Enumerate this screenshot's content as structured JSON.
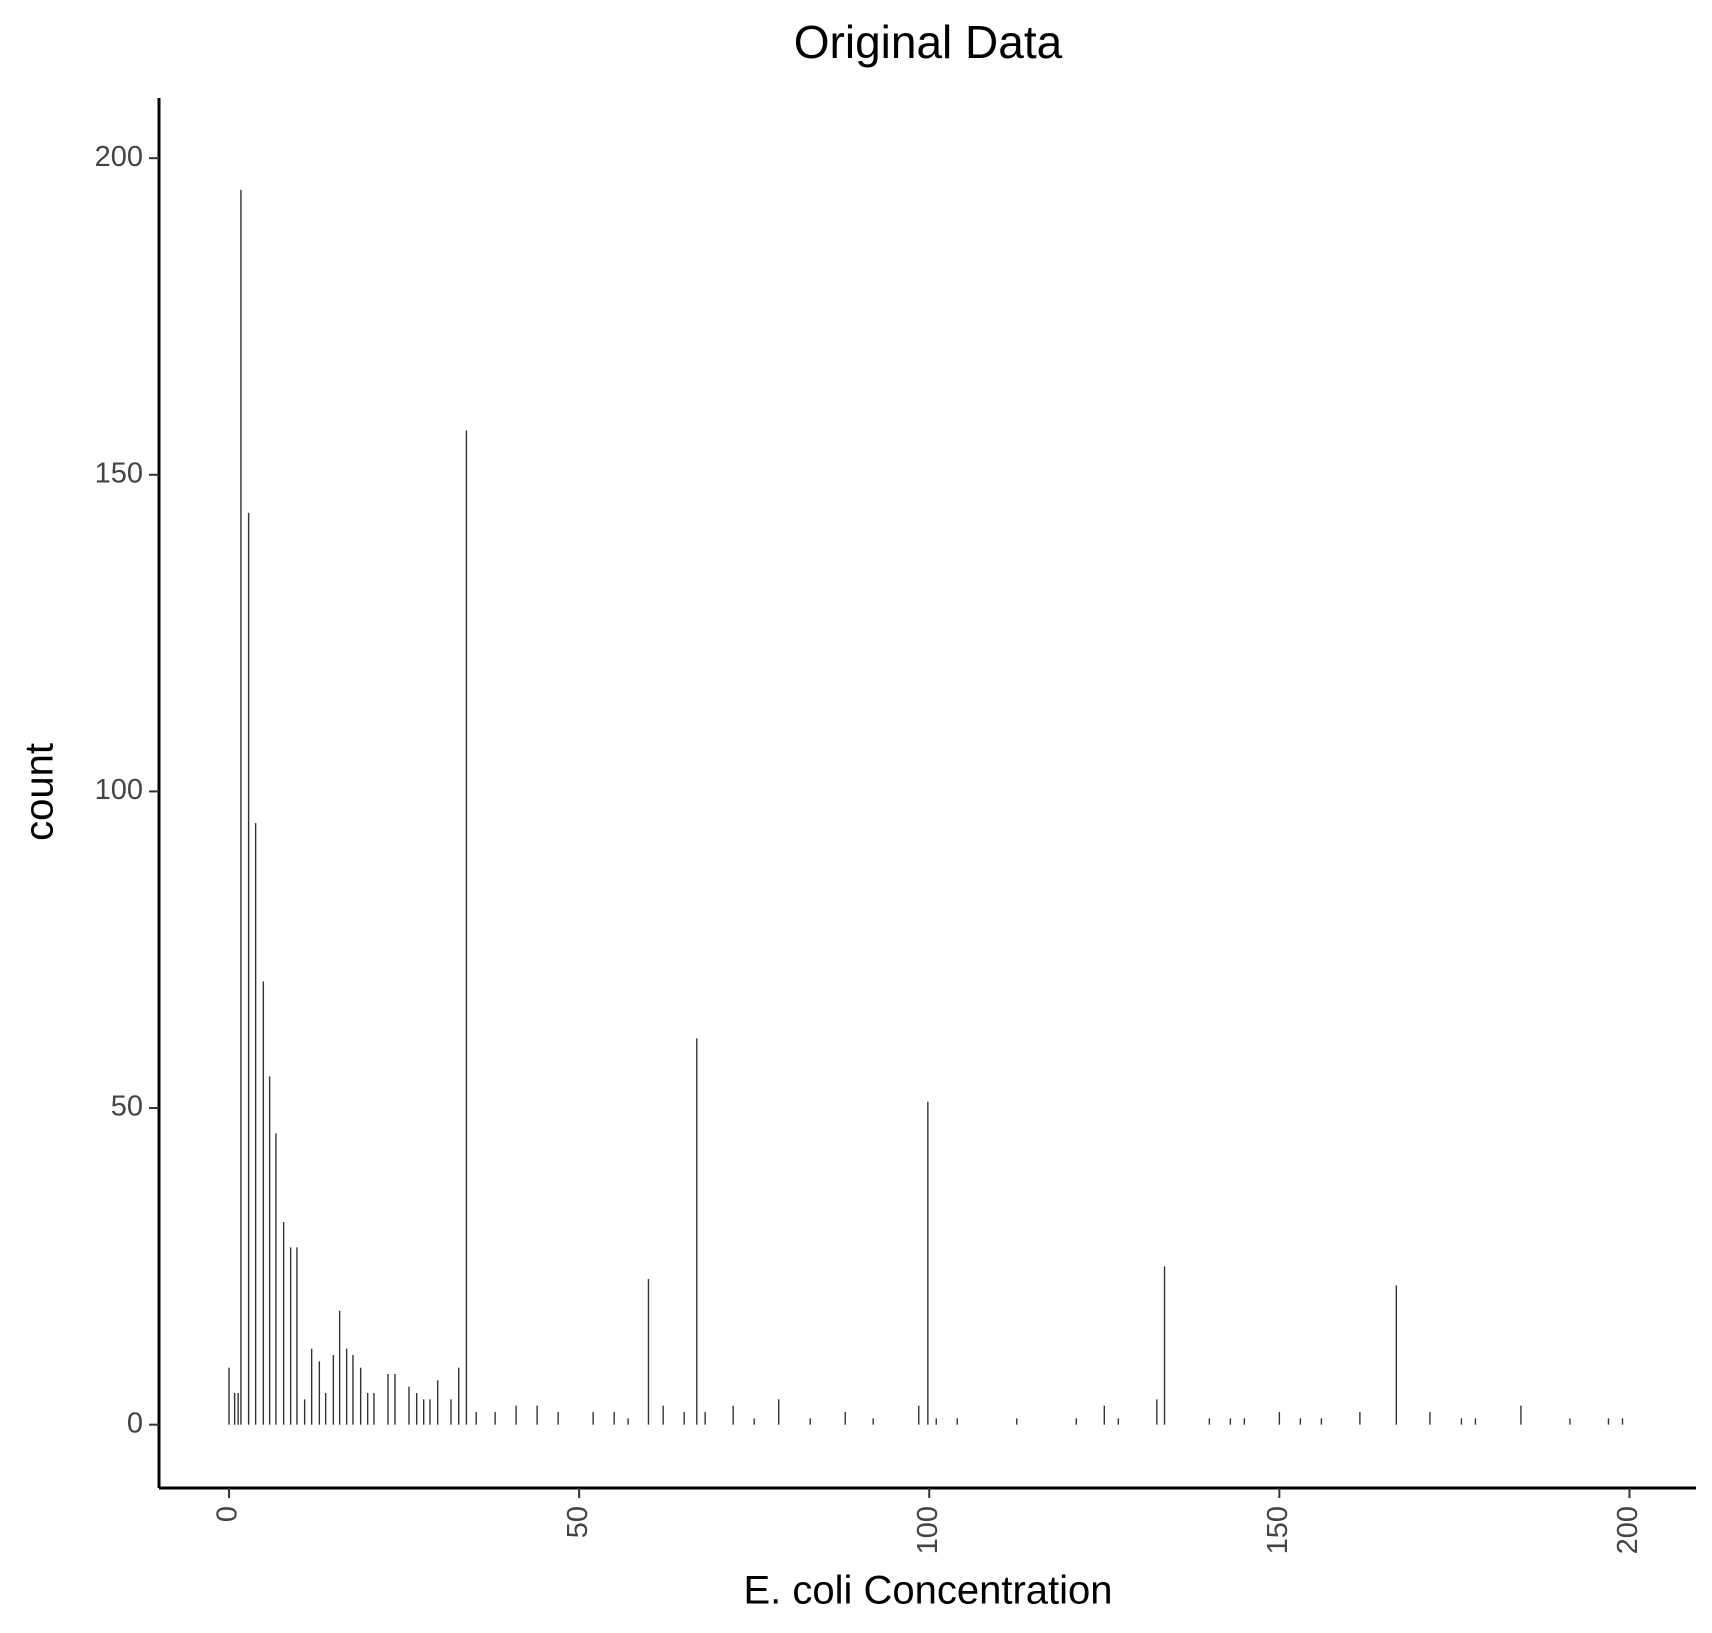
{
  "chart_data": {
    "type": "bar",
    "title": "Original Data",
    "x_label": "E. coli Concentration",
    "y_label": "count",
    "color": "#333333",
    "xlim": [
      -10,
      209.5
    ],
    "ylim": [
      -10,
      209.5
    ],
    "xticks": [
      0,
      50,
      100,
      150,
      200
    ],
    "yticks": [
      0,
      50,
      100,
      150,
      200
    ],
    "grid": false,
    "x": [
      0.0,
      0.8,
      1.3,
      1.7,
      2.8,
      3.8,
      4.9,
      5.8,
      6.7,
      7.8,
      8.8,
      9.7,
      10.8,
      11.8,
      12.9,
      13.8,
      14.9,
      15.8,
      16.8,
      17.7,
      18.8,
      19.8,
      20.7,
      22.7,
      23.7,
      25.7,
      26.8,
      27.8,
      28.7,
      29.8,
      31.7,
      32.8,
      33.9,
      35.3,
      38,
      41,
      44,
      47,
      52,
      55,
      57,
      59.9,
      62,
      65,
      66.8,
      68,
      72,
      75,
      78.5,
      83,
      88,
      92,
      98.5,
      99.8,
      101,
      104,
      112.5,
      121,
      125,
      127,
      132.5,
      133.6,
      140,
      143,
      145,
      150,
      153,
      156,
      161.5,
      166.7,
      171.5,
      176,
      178,
      184.5,
      191.5,
      197,
      199
    ],
    "values": [
      9,
      5,
      5,
      195,
      144,
      95,
      70,
      55,
      46,
      32,
      28,
      28,
      4,
      12,
      10,
      5,
      11,
      18,
      12,
      11,
      9,
      5,
      5,
      8,
      8,
      6,
      5,
      4,
      4,
      7,
      4,
      9,
      157,
      2,
      2,
      3,
      3,
      2,
      2,
      2,
      1,
      23,
      3,
      2,
      61,
      2,
      3,
      1,
      4,
      1,
      2,
      1,
      3,
      51,
      1,
      1,
      1,
      1,
      3,
      1,
      4,
      25,
      1,
      1,
      1,
      2,
      1,
      1,
      2,
      22,
      2,
      1,
      1,
      3,
      1,
      1,
      1
    ]
  }
}
